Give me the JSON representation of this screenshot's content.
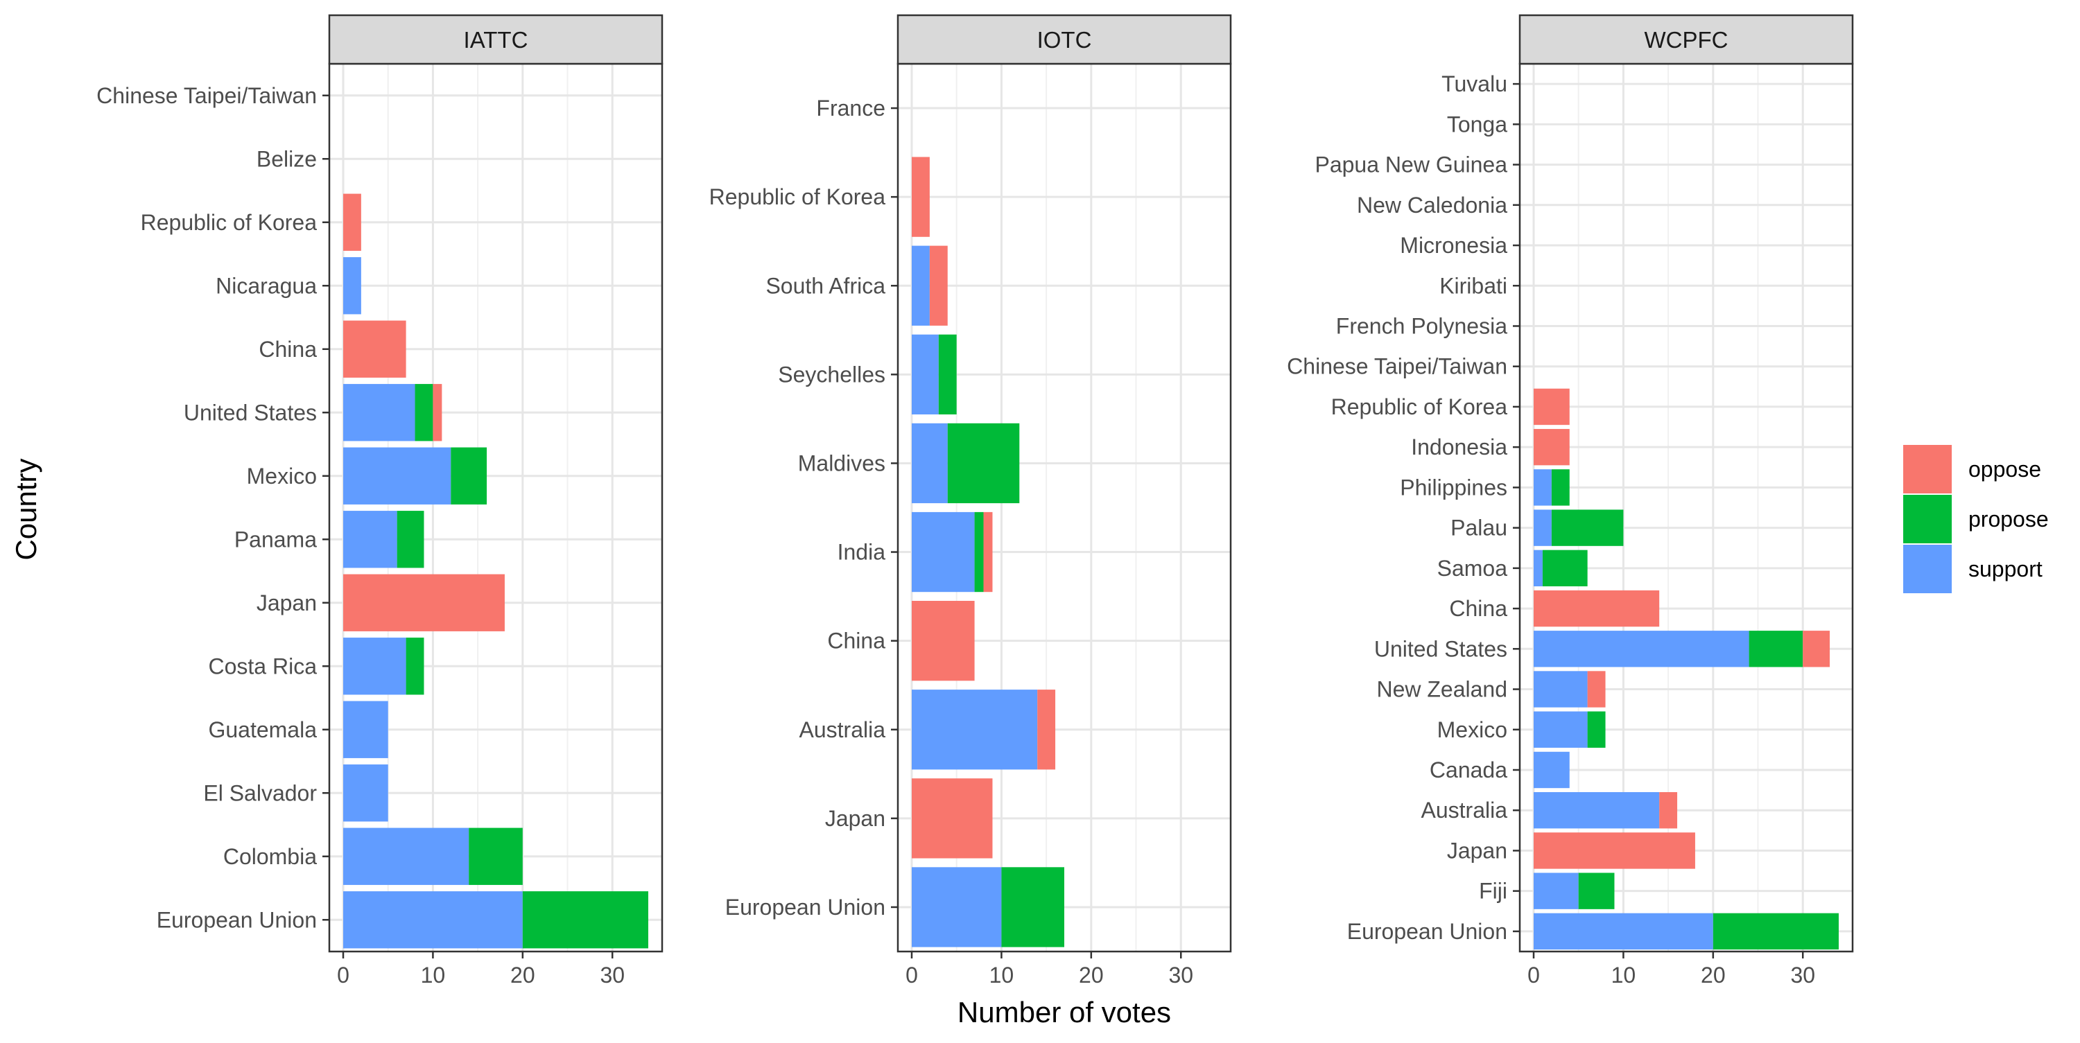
{
  "chart_data": {
    "type": "bar",
    "orientation": "horizontal",
    "stacked": true,
    "xlabel": "Number of votes",
    "ylabel": "Country",
    "xlim": [
      0,
      34
    ],
    "x_ticks": [
      0,
      10,
      20,
      30
    ],
    "grid": true,
    "legend": {
      "placement": "right",
      "items": [
        {
          "name": "oppose",
          "color": "#F8766D"
        },
        {
          "name": "propose",
          "color": "#00BA38"
        },
        {
          "name": "support",
          "color": "#619CFF"
        }
      ]
    },
    "stack_order": [
      "support",
      "propose",
      "oppose"
    ],
    "panels": [
      {
        "title": "IATTC",
        "categories": [
          "Chinese Taipei/Taiwan",
          "Belize",
          "Republic of Korea",
          "Nicaragua",
          "China",
          "United States",
          "Mexico",
          "Panama",
          "Japan",
          "Costa Rica",
          "Guatemala",
          "El Salvador",
          "Colombia",
          "European Union"
        ],
        "series": [
          {
            "name": "support",
            "values": [
              0,
              0,
              0,
              2,
              0,
              8,
              12,
              6,
              0,
              7,
              5,
              5,
              14,
              20
            ]
          },
          {
            "name": "propose",
            "values": [
              0,
              0,
              0,
              0,
              0,
              2,
              4,
              3,
              0,
              2,
              0,
              0,
              6,
              14
            ]
          },
          {
            "name": "oppose",
            "values": [
              0,
              0,
              2,
              0,
              7,
              1,
              0,
              0,
              18,
              0,
              0,
              0,
              0,
              0
            ]
          }
        ]
      },
      {
        "title": "IOTC",
        "categories": [
          "France",
          "Republic of Korea",
          "South Africa",
          "Seychelles",
          "Maldives",
          "India",
          "China",
          "Australia",
          "Japan",
          "European Union"
        ],
        "series": [
          {
            "name": "support",
            "values": [
              0,
              0,
              2,
              3,
              4,
              7,
              0,
              14,
              0,
              10
            ]
          },
          {
            "name": "propose",
            "values": [
              0,
              0,
              0,
              2,
              8,
              1,
              0,
              0,
              0,
              7
            ]
          },
          {
            "name": "oppose",
            "values": [
              0,
              2,
              2,
              0,
              0,
              1,
              7,
              2,
              9,
              0
            ]
          }
        ]
      },
      {
        "title": "WCPFC",
        "categories": [
          "Tuvalu",
          "Tonga",
          "Papua New Guinea",
          "New Caledonia",
          "Micronesia",
          "Kiribati",
          "French Polynesia",
          "Chinese Taipei/Taiwan",
          "Republic of Korea",
          "Indonesia",
          "Philippines",
          "Palau",
          "Samoa",
          "China",
          "United States",
          "New Zealand",
          "Mexico",
          "Canada",
          "Australia",
          "Japan",
          "Fiji",
          "European Union"
        ],
        "series": [
          {
            "name": "support",
            "values": [
              0,
              0,
              0,
              0,
              0,
              0,
              0,
              0,
              0,
              0,
              2,
              2,
              1,
              0,
              24,
              6,
              6,
              4,
              14,
              0,
              5,
              20
            ]
          },
          {
            "name": "propose",
            "values": [
              0,
              0,
              0,
              0,
              0,
              0,
              0,
              0,
              0,
              0,
              2,
              8,
              5,
              0,
              6,
              0,
              2,
              0,
              0,
              0,
              4,
              14
            ]
          },
          {
            "name": "oppose",
            "values": [
              0,
              0,
              0,
              0,
              0,
              0,
              0,
              0,
              4,
              4,
              0,
              0,
              0,
              14,
              3,
              2,
              0,
              0,
              2,
              18,
              0,
              0
            ]
          }
        ]
      }
    ]
  }
}
